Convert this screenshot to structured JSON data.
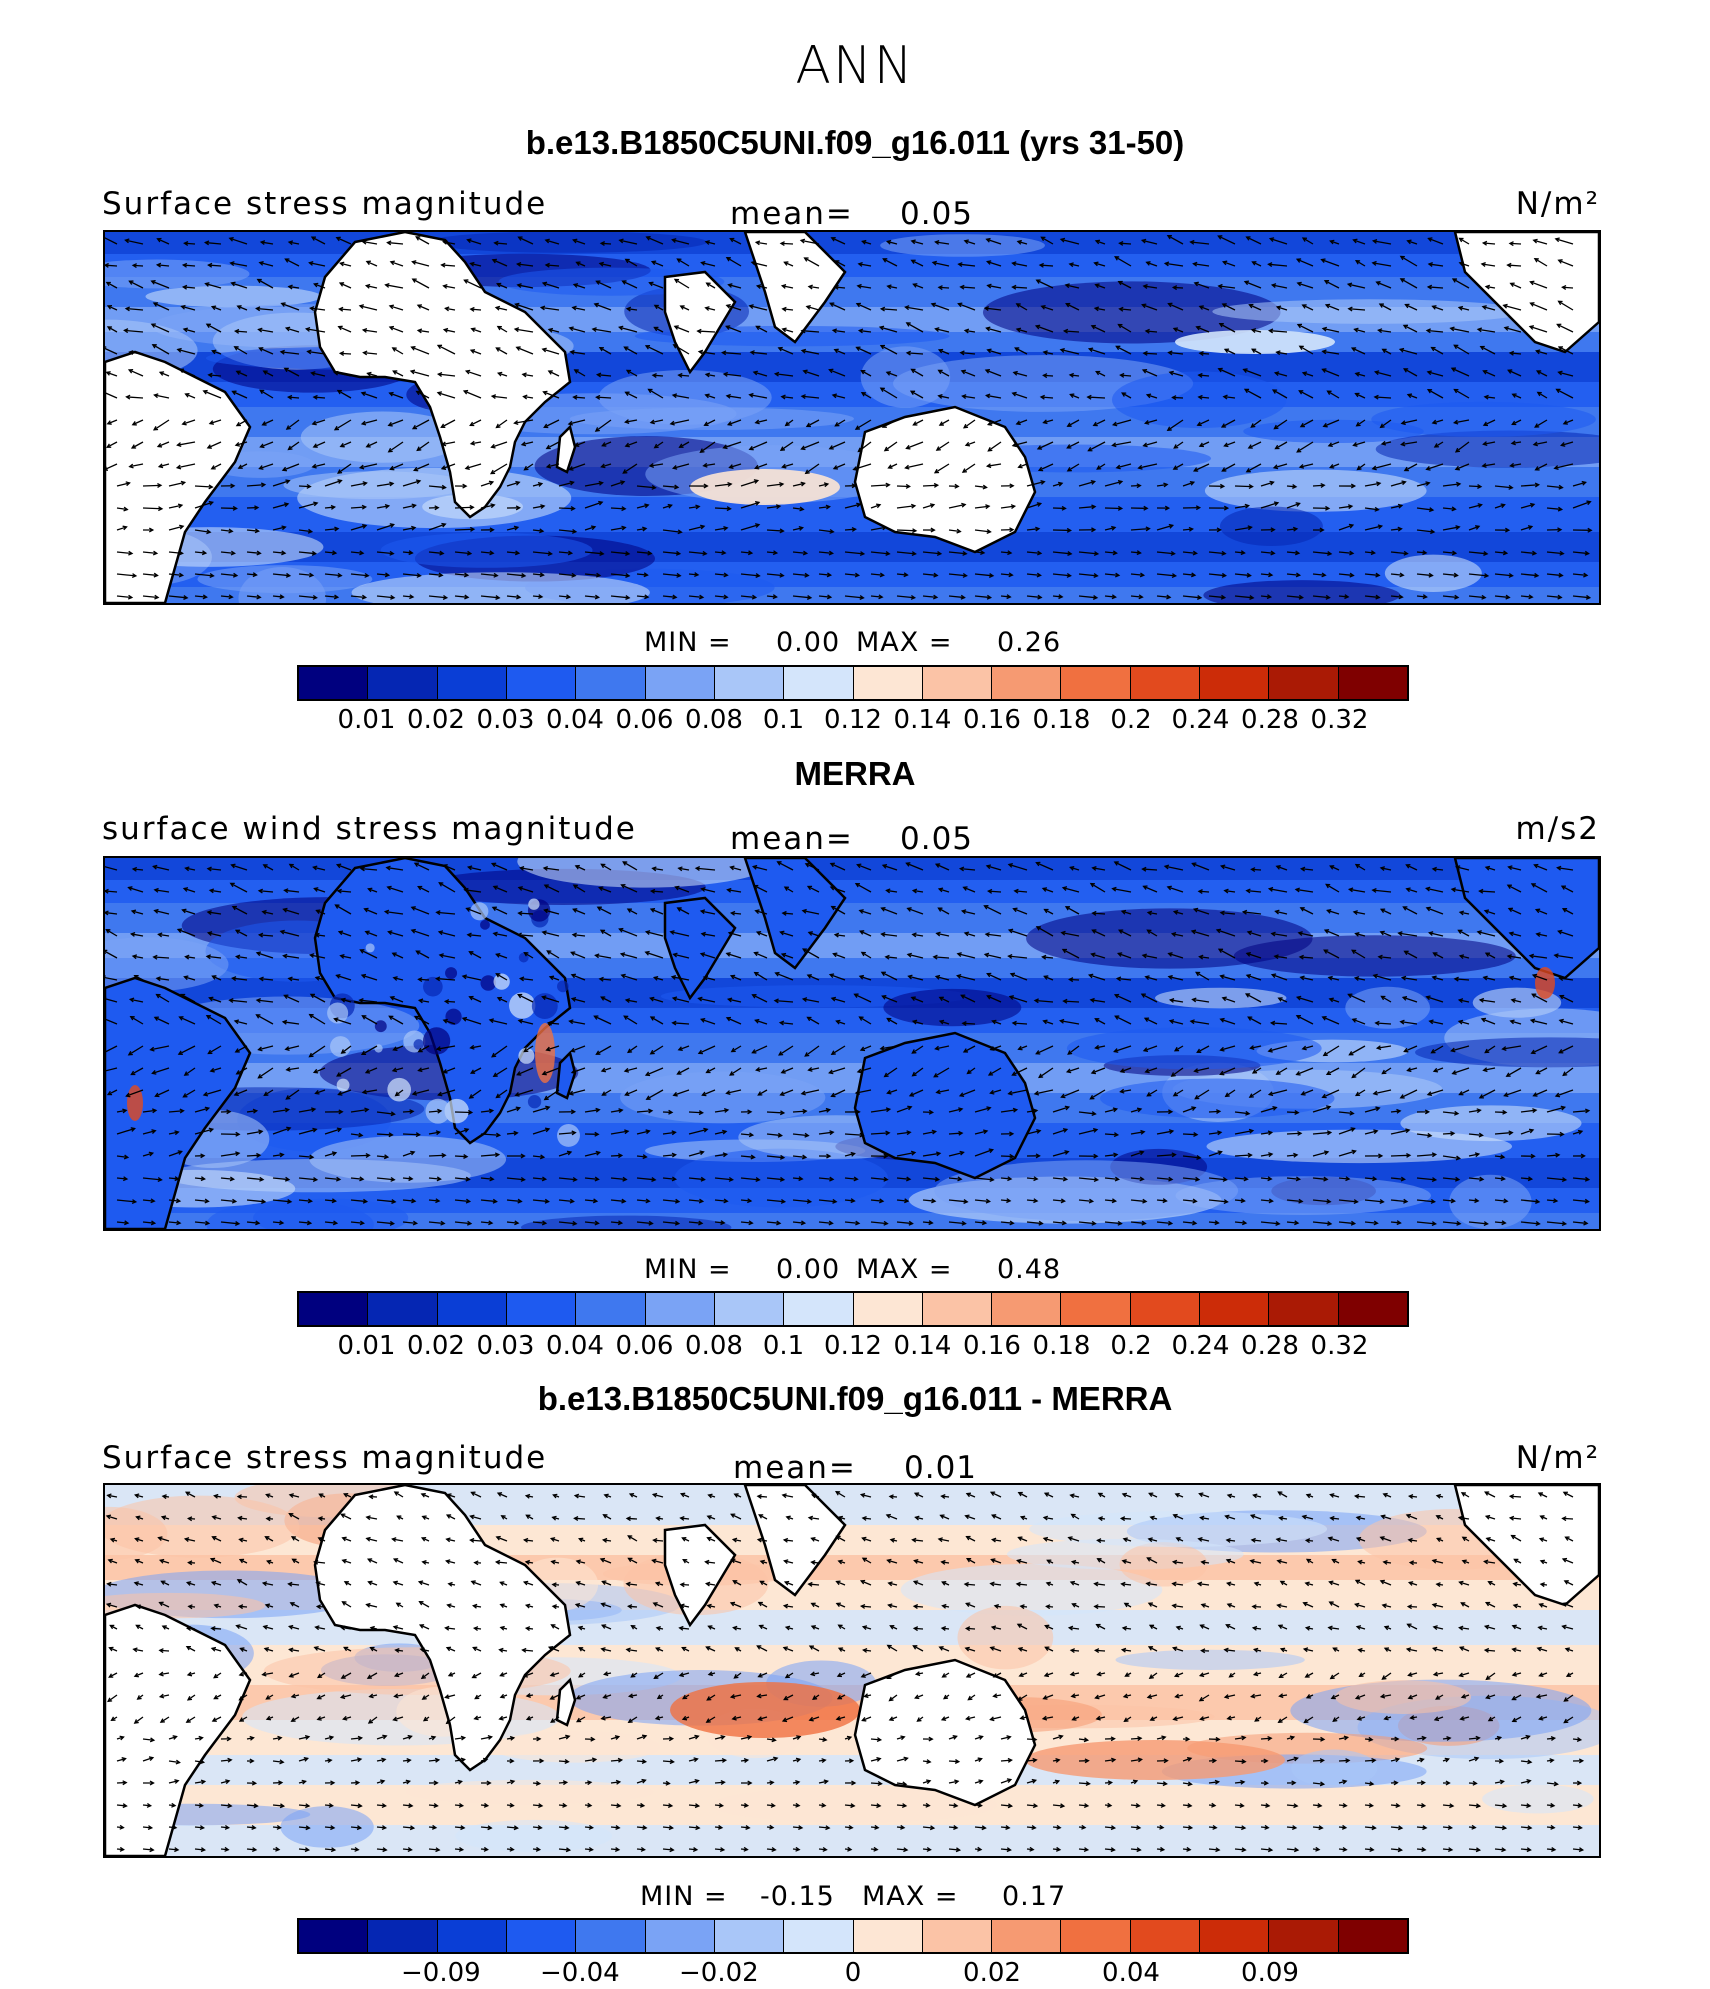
{
  "figure": {
    "title": "ANN"
  },
  "panels": [
    {
      "title": "b.e13.B1850C5UNI.f09_g16.011 (yrs 31-50)",
      "var_label": "Surface stress magnitude",
      "mean_label": "mean=",
      "mean_value": "0.05",
      "units": "N/m²",
      "min_label": "MIN =",
      "min_value": "0.00",
      "max_label": "MAX =",
      "max_value": "0.26",
      "land_masked": true
    },
    {
      "title": "MERRA",
      "var_label": "surface wind stress magnitude",
      "mean_label": "mean=",
      "mean_value": "0.05",
      "units": "m/s2",
      "min_label": "MIN =",
      "min_value": "0.00",
      "max_label": "MAX =",
      "max_value": "0.48",
      "land_masked": false
    },
    {
      "title": "b.e13.B1850C5UNI.f09_g16.011 - MERRA",
      "var_label": "Surface stress magnitude",
      "mean_label": "mean=",
      "mean_value": "0.01",
      "units": "N/m²",
      "min_label": "MIN =",
      "min_value": "-0.15",
      "max_label": "MAX =",
      "max_value": "0.17",
      "land_masked": true
    }
  ],
  "colorbars": {
    "abs_levels": [
      "0.01",
      "0.02",
      "0.03",
      "0.04",
      "0.06",
      "0.08",
      "0.1",
      "0.12",
      "0.14",
      "0.16",
      "0.18",
      "0.2",
      "0.24",
      "0.28",
      "0.32"
    ],
    "diff_labels": [
      "−0.09",
      "−0.04",
      "−0.02",
      "0",
      "0.02",
      "0.04",
      "0.09"
    ],
    "colors": [
      "#00007f",
      "#0526b3",
      "#0a3ed6",
      "#1e5af0",
      "#3f78ef",
      "#7aa3f5",
      "#a9c6f8",
      "#d4e5fb",
      "#fde6d4",
      "#fbc3a6",
      "#f69a72",
      "#f07040",
      "#e24a1e",
      "#cc2c08",
      "#aa1a05",
      "#7f0000"
    ]
  },
  "chart_data": [
    {
      "type": "heatmap",
      "title": "b.e13.B1850C5UNI.f09_g16.011 (yrs 31-50)",
      "variable": "Surface stress magnitude",
      "units": "N/m²",
      "mean": 0.05,
      "min": 0.0,
      "max": 0.26,
      "levels": [
        0.01,
        0.02,
        0.03,
        0.04,
        0.06,
        0.08,
        0.1,
        0.12,
        0.14,
        0.16,
        0.18,
        0.2,
        0.24,
        0.28,
        0.32
      ],
      "overlay": "wind stress vectors"
    },
    {
      "type": "heatmap",
      "title": "MERRA",
      "variable": "surface wind stress magnitude",
      "units": "m/s2",
      "mean": 0.05,
      "min": 0.0,
      "max": 0.48,
      "levels": [
        0.01,
        0.02,
        0.03,
        0.04,
        0.06,
        0.08,
        0.1,
        0.12,
        0.14,
        0.16,
        0.18,
        0.2,
        0.24,
        0.28,
        0.32
      ],
      "overlay": "wind stress vectors"
    },
    {
      "type": "heatmap",
      "title": "b.e13.B1850C5UNI.f09_g16.011 - MERRA",
      "variable": "Surface stress magnitude",
      "units": "N/m²",
      "mean": 0.01,
      "min": -0.15,
      "max": 0.17,
      "levels_labeled": [
        -0.09,
        -0.04,
        -0.02,
        0,
        0.02,
        0.04,
        0.09
      ],
      "overlay": "wind stress difference vectors"
    }
  ]
}
